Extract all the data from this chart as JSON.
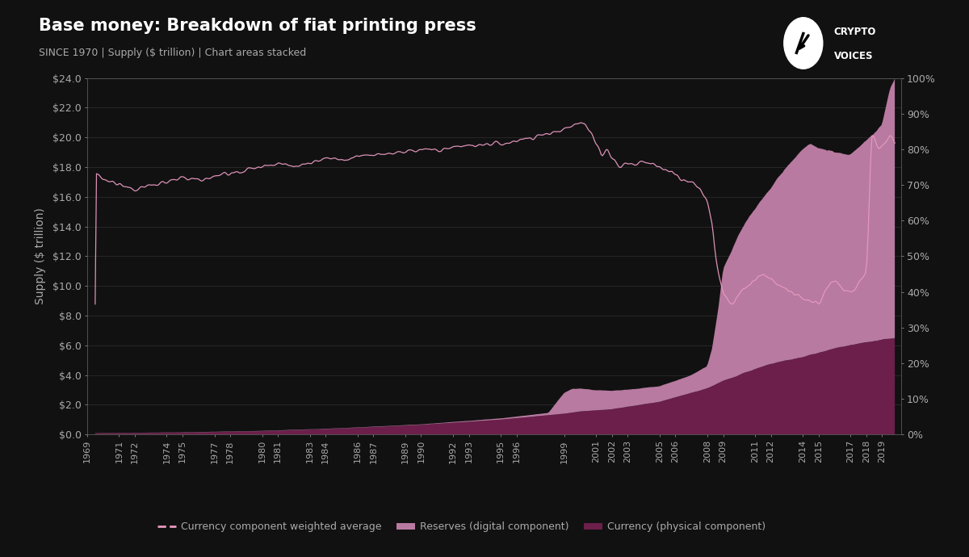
{
  "title": "Base money: Breakdown of fiat printing press",
  "subtitle": "SINCE 1970 | Supply ($ trillion) | Chart areas stacked",
  "ylabel": "Supply ($ trillion)",
  "background_color": "#111111",
  "text_color": "#aaaaaa",
  "grid_color": "#444444",
  "ylim_left": [
    0,
    24.0
  ],
  "ylim_right": [
    0,
    1.0
  ],
  "right_ticks": [
    0.0,
    0.1,
    0.2,
    0.3,
    0.4,
    0.5,
    0.6,
    0.7,
    0.8,
    0.9,
    1.0
  ],
  "right_tick_labels": [
    "0%",
    "10%",
    "20%",
    "30%",
    "40%",
    "50%",
    "60%",
    "70%",
    "80%",
    "90%",
    "100%"
  ],
  "left_ticks": [
    0,
    2,
    4,
    6,
    8,
    10,
    12,
    14,
    16,
    18,
    20,
    22,
    24
  ],
  "left_tick_labels": [
    "$0.0",
    "$2.0",
    "$4.0",
    "$6.0",
    "$8.0",
    "$10.0",
    "$12.0",
    "$14.0",
    "$16.0",
    "$18.0",
    "$20.0",
    "$22.0",
    "$24.0"
  ],
  "color_currency": "#6b1f4a",
  "color_reserves": "#b87aa0",
  "color_line": "#e899c0",
  "xtick_years": [
    1969,
    1971,
    1972,
    1974,
    1975,
    1977,
    1978,
    1980,
    1981,
    1983,
    1984,
    1986,
    1987,
    1989,
    1990,
    1992,
    1993,
    1995,
    1996,
    1999,
    2001,
    2002,
    2003,
    2005,
    2006,
    2008,
    2009,
    2011,
    2012,
    2014,
    2015,
    2017,
    2018,
    2019
  ],
  "legend_items": [
    "Currency component weighted average",
    "Reserves (digital component)",
    "Currency (physical component)"
  ]
}
